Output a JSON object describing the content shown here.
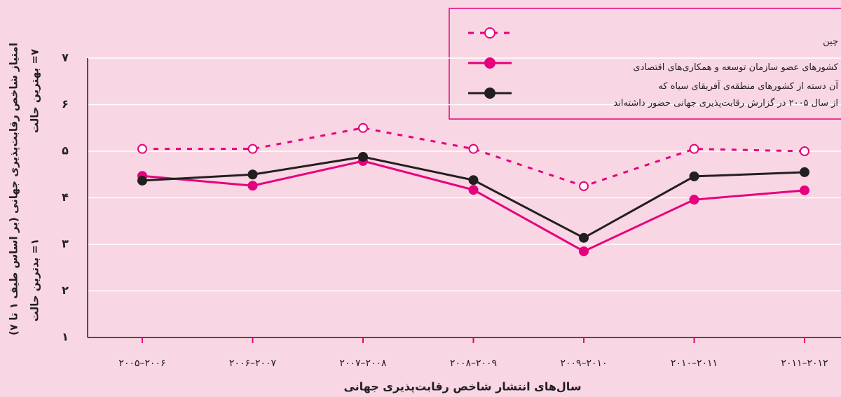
{
  "chart_data": {
    "type": "line",
    "y_label": "امتیاز شاخص رقابت‌پذیری جهانی (بر اساس طیف ۱ تا ۷)",
    "annotations": [
      "۷= بهترین حالت",
      "۱= بدترین حالت"
    ],
    "x_label": "سال‌های انتشار شاخص رقابت‌پذیری جهانی",
    "categories": [
      "۲۰۰۵–۲۰۰۶",
      "۲۰۰۶–۲۰۰۷",
      "۲۰۰۷–۲۰۰۸",
      "۲۰۰۸–۲۰۰۹",
      "۲۰۰۹–۲۰۱۰",
      "۲۰۱۰–۲۰۱۱",
      "۲۰۱۱–۲۰۱۲"
    ],
    "series": [
      {
        "name": "چین",
        "color": "#e6007e",
        "dashed": true,
        "hollow": true,
        "values": [
          5.05,
          5.05,
          5.5,
          5.05,
          4.25,
          5.05,
          5.0
        ]
      },
      {
        "name": "کشورهای عضو سازمان توسعه و همکاری‌های اقتصادی",
        "color": "#e6007e",
        "values": [
          4.47,
          4.26,
          4.79,
          4.17,
          2.85,
          3.96,
          4.16
        ]
      },
      {
        "name": "آن دسته از کشورهای منطقه‌ی آفریقای سیاه که\nاز سال ۲۰۰۵ در گزارش رقابت‌پذیری جهانی حضور داشته‌اند",
        "color": "#231f20",
        "values": [
          4.37,
          4.5,
          4.88,
          4.38,
          3.14,
          4.46,
          4.55
        ]
      }
    ],
    "ylim": [
      1,
      7
    ],
    "yticks": [
      {
        "value": 1,
        "label": "۱"
      },
      {
        "value": 2,
        "label": "۲"
      },
      {
        "value": 3,
        "label": "۳"
      },
      {
        "value": 4,
        "label": "۴"
      },
      {
        "value": 5,
        "label": "۵"
      },
      {
        "value": 6,
        "label": "۶"
      },
      {
        "value": 7,
        "label": "۷"
      }
    ],
    "grid": true
  }
}
